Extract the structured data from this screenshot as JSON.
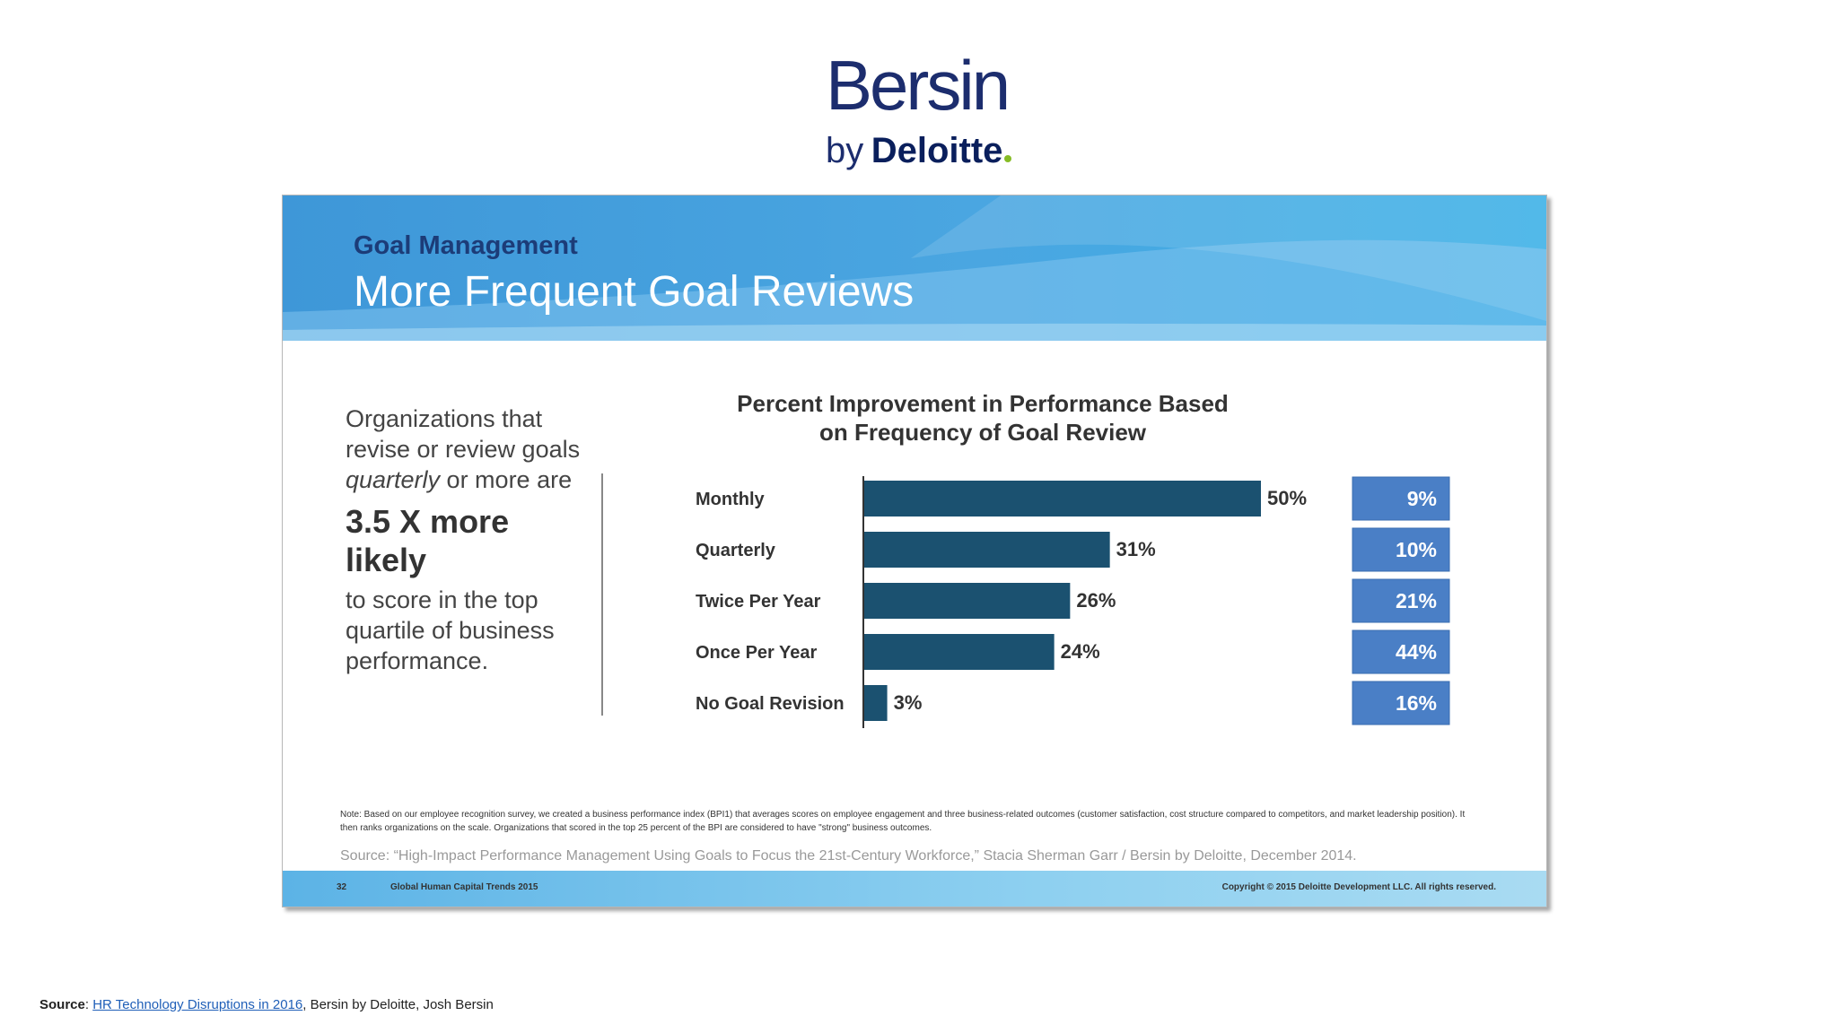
{
  "logo": {
    "bersin": "Bersin",
    "by": "by",
    "deloitte": "Deloitte",
    "dot_color": "#86bc25"
  },
  "slide": {
    "kicker": "Goal Management",
    "title": "More Frequent Goal Reviews",
    "side_text": {
      "line1": "Organizations that revise or review goals ",
      "emphasis": "quarterly",
      "line2": " or more are",
      "big": "3.5 X more likely",
      "line3": "to score in the top quartile of business performance."
    },
    "note": "Note: Based on our employee recognition survey, we created a business performance index (BPI1) that averages scores on employee engagement and three business-related outcomes (customer satisfaction, cost structure compared to competitors, and market leadership position). It then ranks organizations on the scale. Organizations that scored in the top 25 percent of the BPI are considered to have \"strong\" business outcomes.",
    "source": "Source:  “High-Impact Performance Management Using Goals to Focus the 21st-Century Workforce,” Stacia Sherman Garr / Bersin by Deloitte, December 2014.",
    "footer": {
      "page": "32",
      "title": "Global Human Capital Trends 2015",
      "copyright": "Copyright © 2015 Deloitte Development LLC. All rights reserved."
    }
  },
  "chart_data": {
    "type": "bar",
    "orientation": "horizontal",
    "title": "Percent Improvement in Performance Based on Frequency of Goal Review",
    "categories": [
      "Monthly",
      "Quarterly",
      "Twice Per Year",
      "Once Per Year",
      "No Goal Revision"
    ],
    "values": [
      50,
      31,
      26,
      24,
      3
    ],
    "value_labels": [
      "50%",
      "31%",
      "26%",
      "24%",
      "3%"
    ],
    "side_values": [
      9,
      10,
      21,
      44,
      16
    ],
    "side_labels": [
      "9%",
      "10%",
      "21%",
      "44%",
      "16%"
    ],
    "xlim": [
      0,
      50
    ],
    "bar_color": "#1b5170",
    "side_box_color": "#4a7fc6"
  },
  "source_line": {
    "label": "Source",
    "link": "HR Technology Disruptions in 2016",
    "rest": ", Bersin by Deloitte, Josh Bersin"
  }
}
